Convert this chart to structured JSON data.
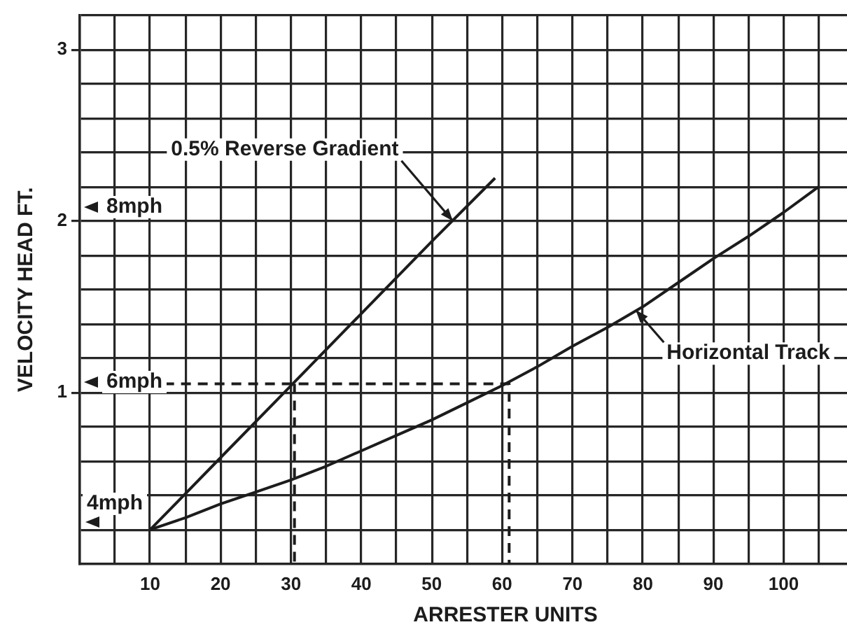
{
  "chart_data": {
    "type": "line",
    "xlabel": "ARRESTER UNITS",
    "ylabel": "VELOCITY HEAD FT.",
    "xlim": [
      0,
      109
    ],
    "xticks": [
      {
        "value": 5,
        "label": null
      },
      10,
      {
        "value": 15,
        "label": null
      },
      20,
      {
        "value": 25,
        "label": null
      },
      30,
      {
        "value": 35,
        "label": null
      },
      40,
      {
        "value": 45,
        "label": null
      },
      50,
      {
        "value": 55,
        "label": null
      },
      60,
      {
        "value": 65,
        "label": null
      },
      70,
      {
        "value": 75,
        "label": null
      },
      80,
      {
        "value": 85,
        "label": null
      },
      90,
      {
        "value": 95,
        "label": null
      },
      100,
      {
        "value": 105,
        "label": null
      }
    ],
    "ylim": [
      0,
      3.2
    ],
    "yticks": [
      {
        "value": 0.2,
        "label": null
      },
      {
        "value": 0.4,
        "label": null
      },
      {
        "value": 0.6,
        "label": null
      },
      {
        "value": 0.8,
        "label": null
      },
      1,
      {
        "value": 1.2,
        "label": null
      },
      {
        "value": 1.4,
        "label": null
      },
      {
        "value": 1.6,
        "label": null
      },
      {
        "value": 1.8,
        "label": null
      },
      2,
      {
        "value": 2.2,
        "label": null
      },
      {
        "value": 2.4,
        "label": null
      },
      {
        "value": 2.6,
        "label": null
      },
      {
        "value": 2.8,
        "label": null
      },
      3,
      {
        "value": 3.2,
        "label": null
      }
    ],
    "grid": true,
    "marker": "none",
    "series": [
      {
        "color": "#1c1c1c",
        "x": [
          10,
          20,
          30,
          40,
          50,
          59
        ],
        "values": [
          0.2,
          0.62,
          1.04,
          1.46,
          1.88,
          2.25
        ]
      },
      {
        "color": "#1c1c1c",
        "x": [
          10,
          15,
          20,
          25,
          30,
          35,
          40,
          45,
          50,
          55,
          60,
          65,
          70,
          75,
          80,
          85,
          90,
          95,
          100,
          105
        ],
        "values": [
          0.2,
          0.27,
          0.35,
          0.42,
          0.49,
          0.57,
          0.66,
          0.75,
          0.84,
          0.94,
          1.04,
          1.15,
          1.27,
          1.38,
          1.5,
          1.64,
          1.78,
          1.91,
          2.05,
          2.2
        ]
      },
      {
        "color": "#1c1c1c",
        "line_style": "dashed",
        "x": [
          12,
          61,
          61
        ],
        "values": [
          1.05,
          1.05,
          0
        ]
      },
      {
        "color": "#1c1c1c",
        "line_style": "dashed",
        "x": [
          30.5,
          30.5
        ],
        "values": [
          1.05,
          0
        ]
      }
    ],
    "annotations": [
      {
        "text": "0.5% Reverse Gradient",
        "x": 53,
        "y": 2.0
      },
      {
        "text": "Horizontal Track",
        "x": 79,
        "y": 1.48
      },
      "8mph",
      "6mph",
      "4mph"
    ]
  }
}
